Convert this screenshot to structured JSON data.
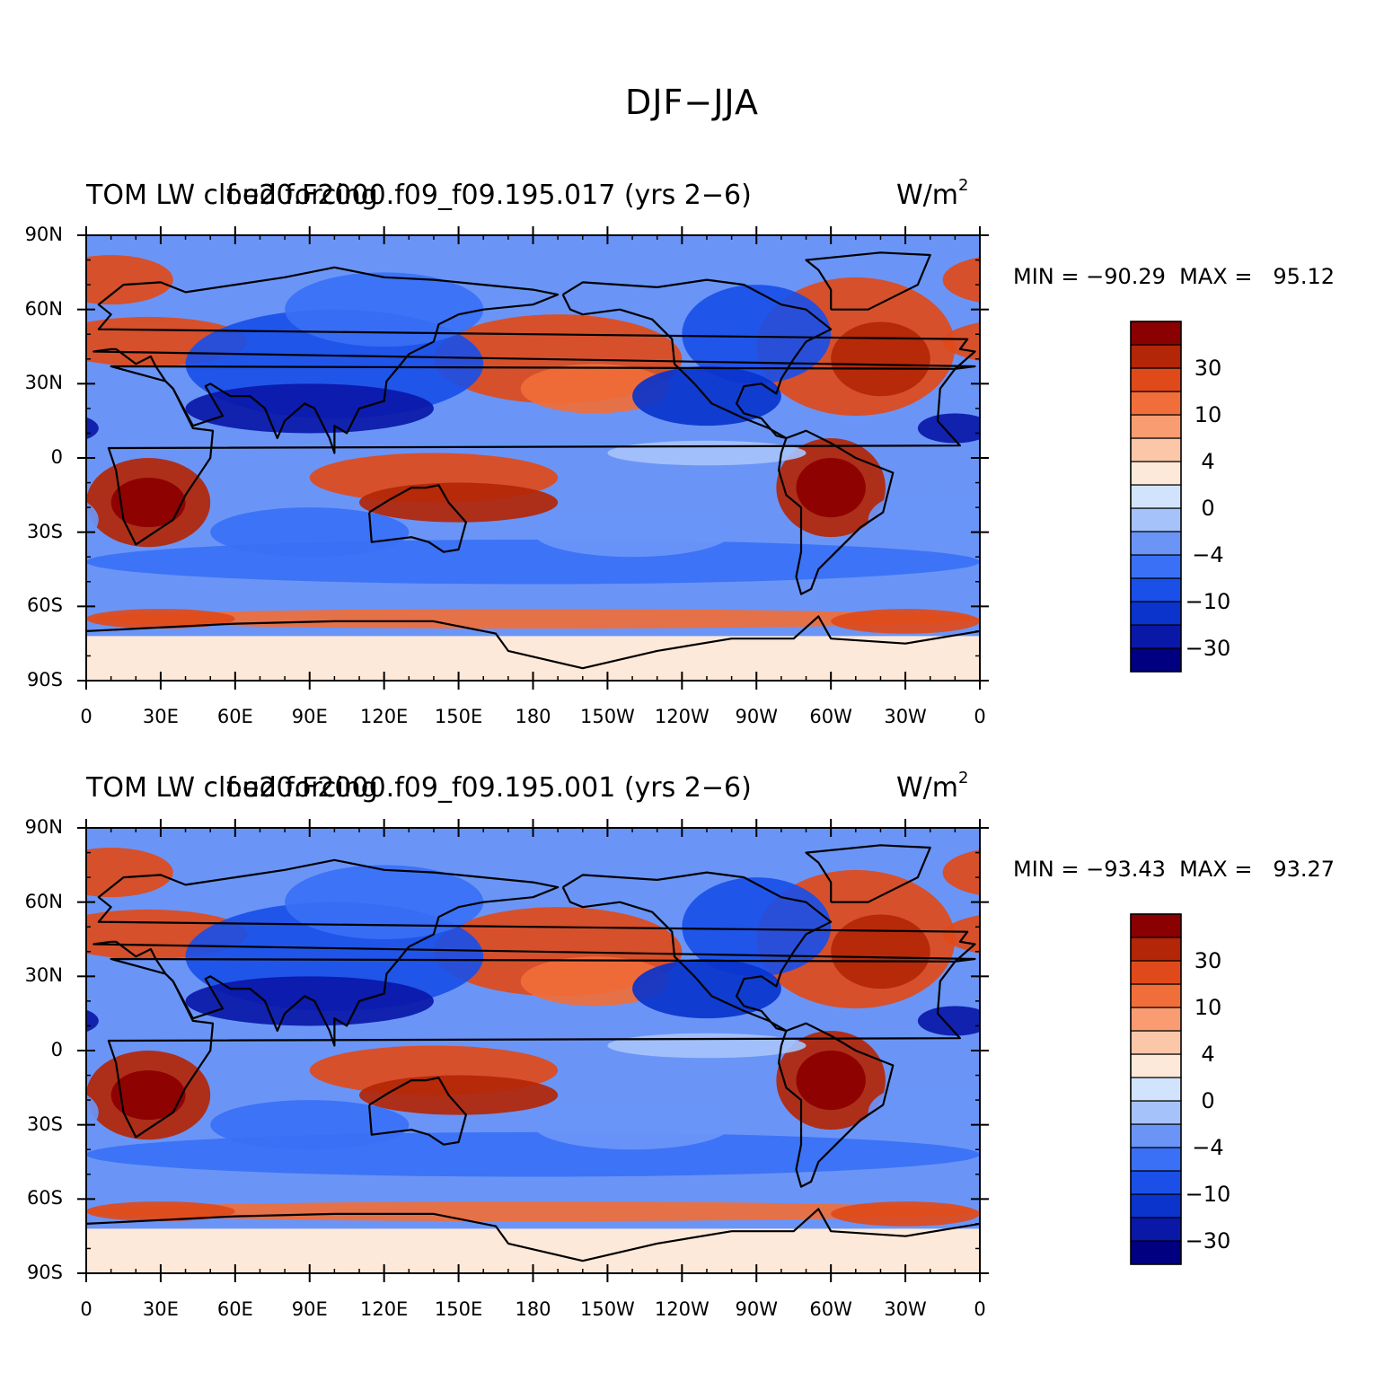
{
  "figure": {
    "title": "DJF−JJA",
    "lat_labels": [
      "90N",
      "60N",
      "30N",
      "0",
      "30S",
      "60S",
      "90S"
    ],
    "lon_labels": [
      "0",
      "30E",
      "60E",
      "90E",
      "120E",
      "150E",
      "180",
      "150W",
      "120W",
      "90W",
      "60W",
      "30W",
      "0"
    ],
    "colorbar": {
      "colors": [
        "#000080",
        "#0a18a8",
        "#0a34cc",
        "#1a4fe8",
        "#3a70f5",
        "#6a95f7",
        "#a6c2fa",
        "#d2e4fd",
        "#fde9d9",
        "#fcc7a8",
        "#f99c72",
        "#f06e3a",
        "#e04a1a",
        "#b32607",
        "#8b0000"
      ],
      "tick_labels": [
        "30",
        "10",
        "4",
        "0",
        "−4",
        "−10",
        "−30"
      ]
    }
  },
  "panels": [
    {
      "left_title": "TOM LW cloud forcing",
      "center_title": "f.e20.F2000.f09_f09.195.017 (yrs 2−6)",
      "units": "W/m",
      "units_sup": "2",
      "stats": "MIN = −90.29  MAX =   95.12",
      "min": -90.29,
      "max": 95.12
    },
    {
      "left_title": "TOM LW cloud forcing",
      "center_title": "f.e20.F2000.f09_f09.195.001 (yrs 2−6)",
      "units": "W/m",
      "units_sup": "2",
      "stats": "MIN = −93.43  MAX =   93.27",
      "min": -93.43,
      "max": 93.27
    }
  ]
}
